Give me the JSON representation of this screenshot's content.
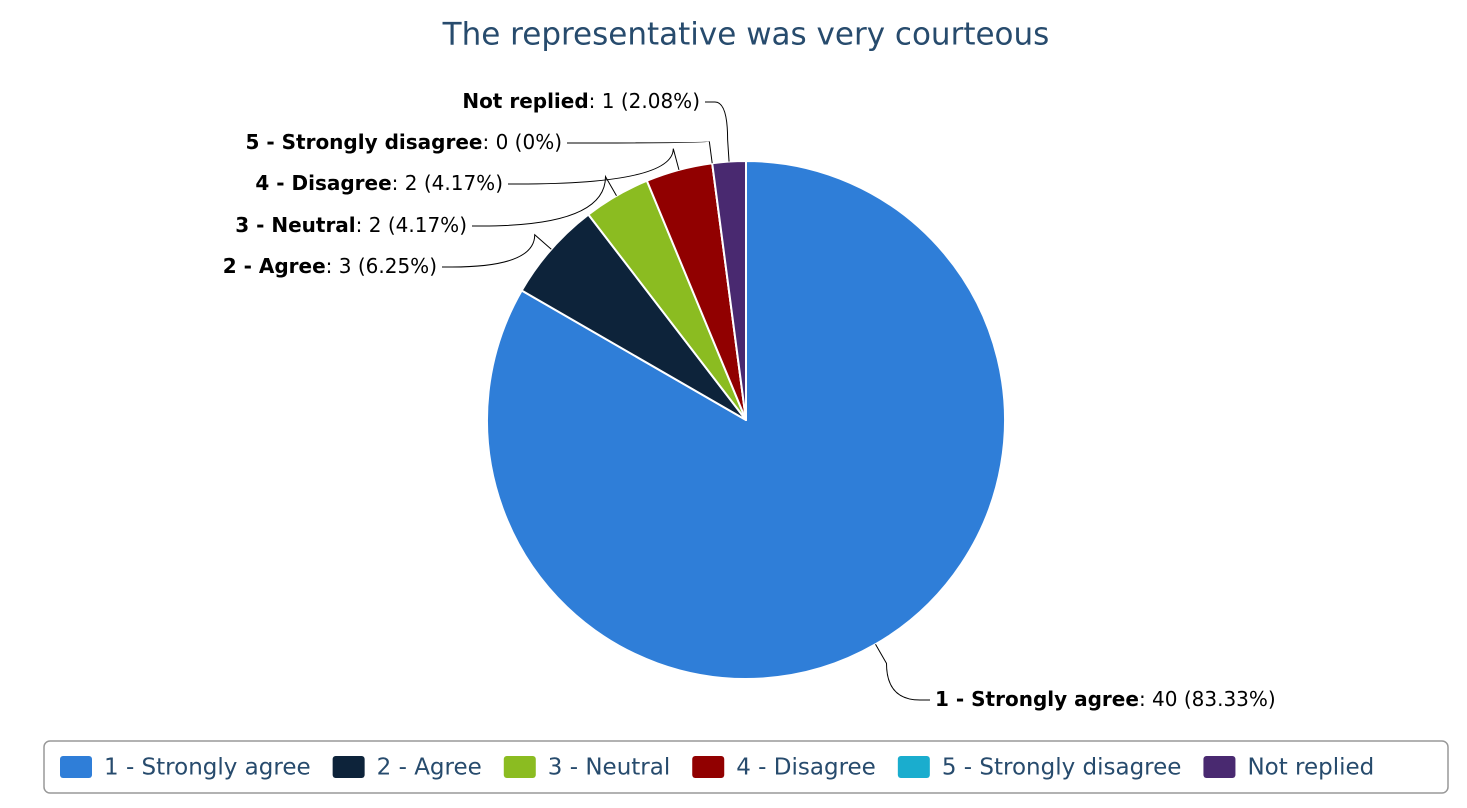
{
  "chart_data": {
    "type": "pie",
    "title": "The representative was very courteous",
    "categories": [
      "1 - Strongly agree",
      "2 - Agree",
      "3 - Neutral",
      "4 - Disagree",
      "5 - Strongly disagree",
      "Not replied"
    ],
    "values": [
      40,
      3,
      2,
      2,
      0,
      1
    ],
    "value_labels": [
      ": 40 (83.33%)",
      ": 3 (6.25%)",
      ": 2 (4.17%)",
      ": 2 (4.17%)",
      ": 0 (0%)",
      ": 1 (2.08%)"
    ],
    "colors": [
      "#2f7ed8",
      "#0d233a",
      "#8bbc21",
      "#910000",
      "#1aadce",
      "#492970"
    ],
    "legend": "bottom"
  }
}
